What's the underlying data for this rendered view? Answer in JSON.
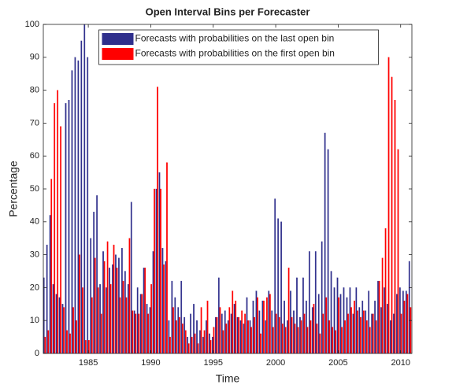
{
  "chart_data": {
    "type": "bar",
    "title": "Open Interval Bins per Forecaster",
    "xlabel": "Time",
    "ylabel": "Percentage",
    "x": [
      1981.5,
      1981.75,
      1982,
      1982.25,
      1982.5,
      1982.75,
      1983,
      1983.25,
      1983.5,
      1983.75,
      1984,
      1984.25,
      1984.5,
      1984.75,
      1985,
      1985.25,
      1985.5,
      1985.75,
      1986,
      1986.25,
      1986.5,
      1986.75,
      1987,
      1987.25,
      1987.5,
      1987.75,
      1988,
      1988.25,
      1988.5,
      1988.75,
      1989,
      1989.25,
      1989.5,
      1989.75,
      1990,
      1990.25,
      1990.5,
      1990.75,
      1991,
      1991.25,
      1991.5,
      1991.75,
      1992,
      1992.25,
      1992.5,
      1992.75,
      1993,
      1993.25,
      1993.5,
      1993.75,
      1994,
      1994.25,
      1994.5,
      1994.75,
      1995,
      1995.25,
      1995.5,
      1995.75,
      1996,
      1996.25,
      1996.5,
      1996.75,
      1997,
      1997.25,
      1997.5,
      1997.75,
      1998,
      1998.25,
      1998.5,
      1998.75,
      1999,
      1999.25,
      1999.5,
      1999.75,
      2000,
      2000.25,
      2000.5,
      2000.75,
      2001,
      2001.25,
      2001.5,
      2001.75,
      2002,
      2002.25,
      2002.5,
      2002.75,
      2003,
      2003.25,
      2003.5,
      2003.75,
      2004,
      2004.25,
      2004.5,
      2004.75,
      2005,
      2005.25,
      2005.5,
      2005.75,
      2006,
      2006.25,
      2006.5,
      2006.75,
      2007,
      2007.25,
      2007.5,
      2007.75,
      2008,
      2008.25,
      2008.5,
      2008.75,
      2009,
      2009.25,
      2009.5,
      2009.75,
      2010,
      2010.25,
      2010.5,
      2010.75
    ],
    "series": [
      {
        "name": "Forecasts with probabilities on the last open bin",
        "color": "#2f2f8c",
        "values": [
          23,
          33,
          42,
          21,
          18,
          17,
          15,
          76,
          77,
          86,
          90,
          89,
          95,
          100,
          90,
          35,
          43,
          48,
          21,
          31,
          20,
          26,
          27,
          30,
          29,
          32,
          25,
          21,
          46,
          13,
          20,
          18,
          26,
          15,
          14,
          31,
          50,
          55,
          32,
          28,
          10,
          22,
          17,
          14,
          22,
          11,
          5,
          12,
          15,
          10,
          7,
          5,
          10,
          6,
          5,
          11,
          23,
          12,
          13,
          10,
          12,
          15,
          11,
          10,
          9,
          17,
          10,
          16,
          19,
          13,
          16,
          10,
          19,
          13,
          47,
          41,
          40,
          16,
          10,
          19,
          13,
          23,
          11,
          23,
          16,
          31,
          14,
          31,
          18,
          34,
          67,
          62,
          25,
          20,
          23,
          18,
          20,
          17,
          20,
          12,
          20,
          14,
          16,
          13,
          19,
          12,
          16,
          22,
          14,
          20,
          15,
          10,
          12,
          18,
          20,
          19,
          19,
          28
        ]
      },
      {
        "name": "Forecasts with probabilities on the first open bin",
        "color": "#ff0000",
        "values": [
          5,
          7,
          53,
          76,
          80,
          69,
          14,
          7,
          6,
          14,
          10,
          30,
          20,
          4,
          4,
          17,
          29,
          20,
          12,
          28,
          34,
          21,
          33,
          26,
          17,
          22,
          17,
          35,
          13,
          12,
          12,
          18,
          26,
          12,
          21,
          50,
          81,
          50,
          27,
          58,
          5,
          14,
          10,
          11,
          9,
          7,
          3,
          5,
          6,
          3,
          14,
          7,
          16,
          4,
          8,
          11,
          14,
          7,
          9,
          14,
          19,
          16,
          11,
          13,
          12,
          10,
          8,
          11,
          17,
          6,
          16,
          17,
          18,
          8,
          12,
          11,
          9,
          8,
          26,
          11,
          9,
          8,
          10,
          12,
          8,
          10,
          15,
          9,
          6,
          12,
          17,
          10,
          8,
          7,
          17,
          8,
          10,
          12,
          14,
          16,
          13,
          11,
          13,
          10,
          8,
          12,
          10,
          22,
          29,
          38,
          90,
          84,
          77,
          62,
          12,
          16,
          18,
          14
        ]
      }
    ],
    "xlim": [
      1981.4,
      2010.9
    ],
    "xticks": [
      1985,
      1990,
      1995,
      2000,
      2005,
      2010
    ],
    "ylim": [
      0,
      100
    ],
    "yticks": [
      0,
      10,
      20,
      30,
      40,
      50,
      60,
      70,
      80,
      90,
      100
    ],
    "legend": "top"
  }
}
